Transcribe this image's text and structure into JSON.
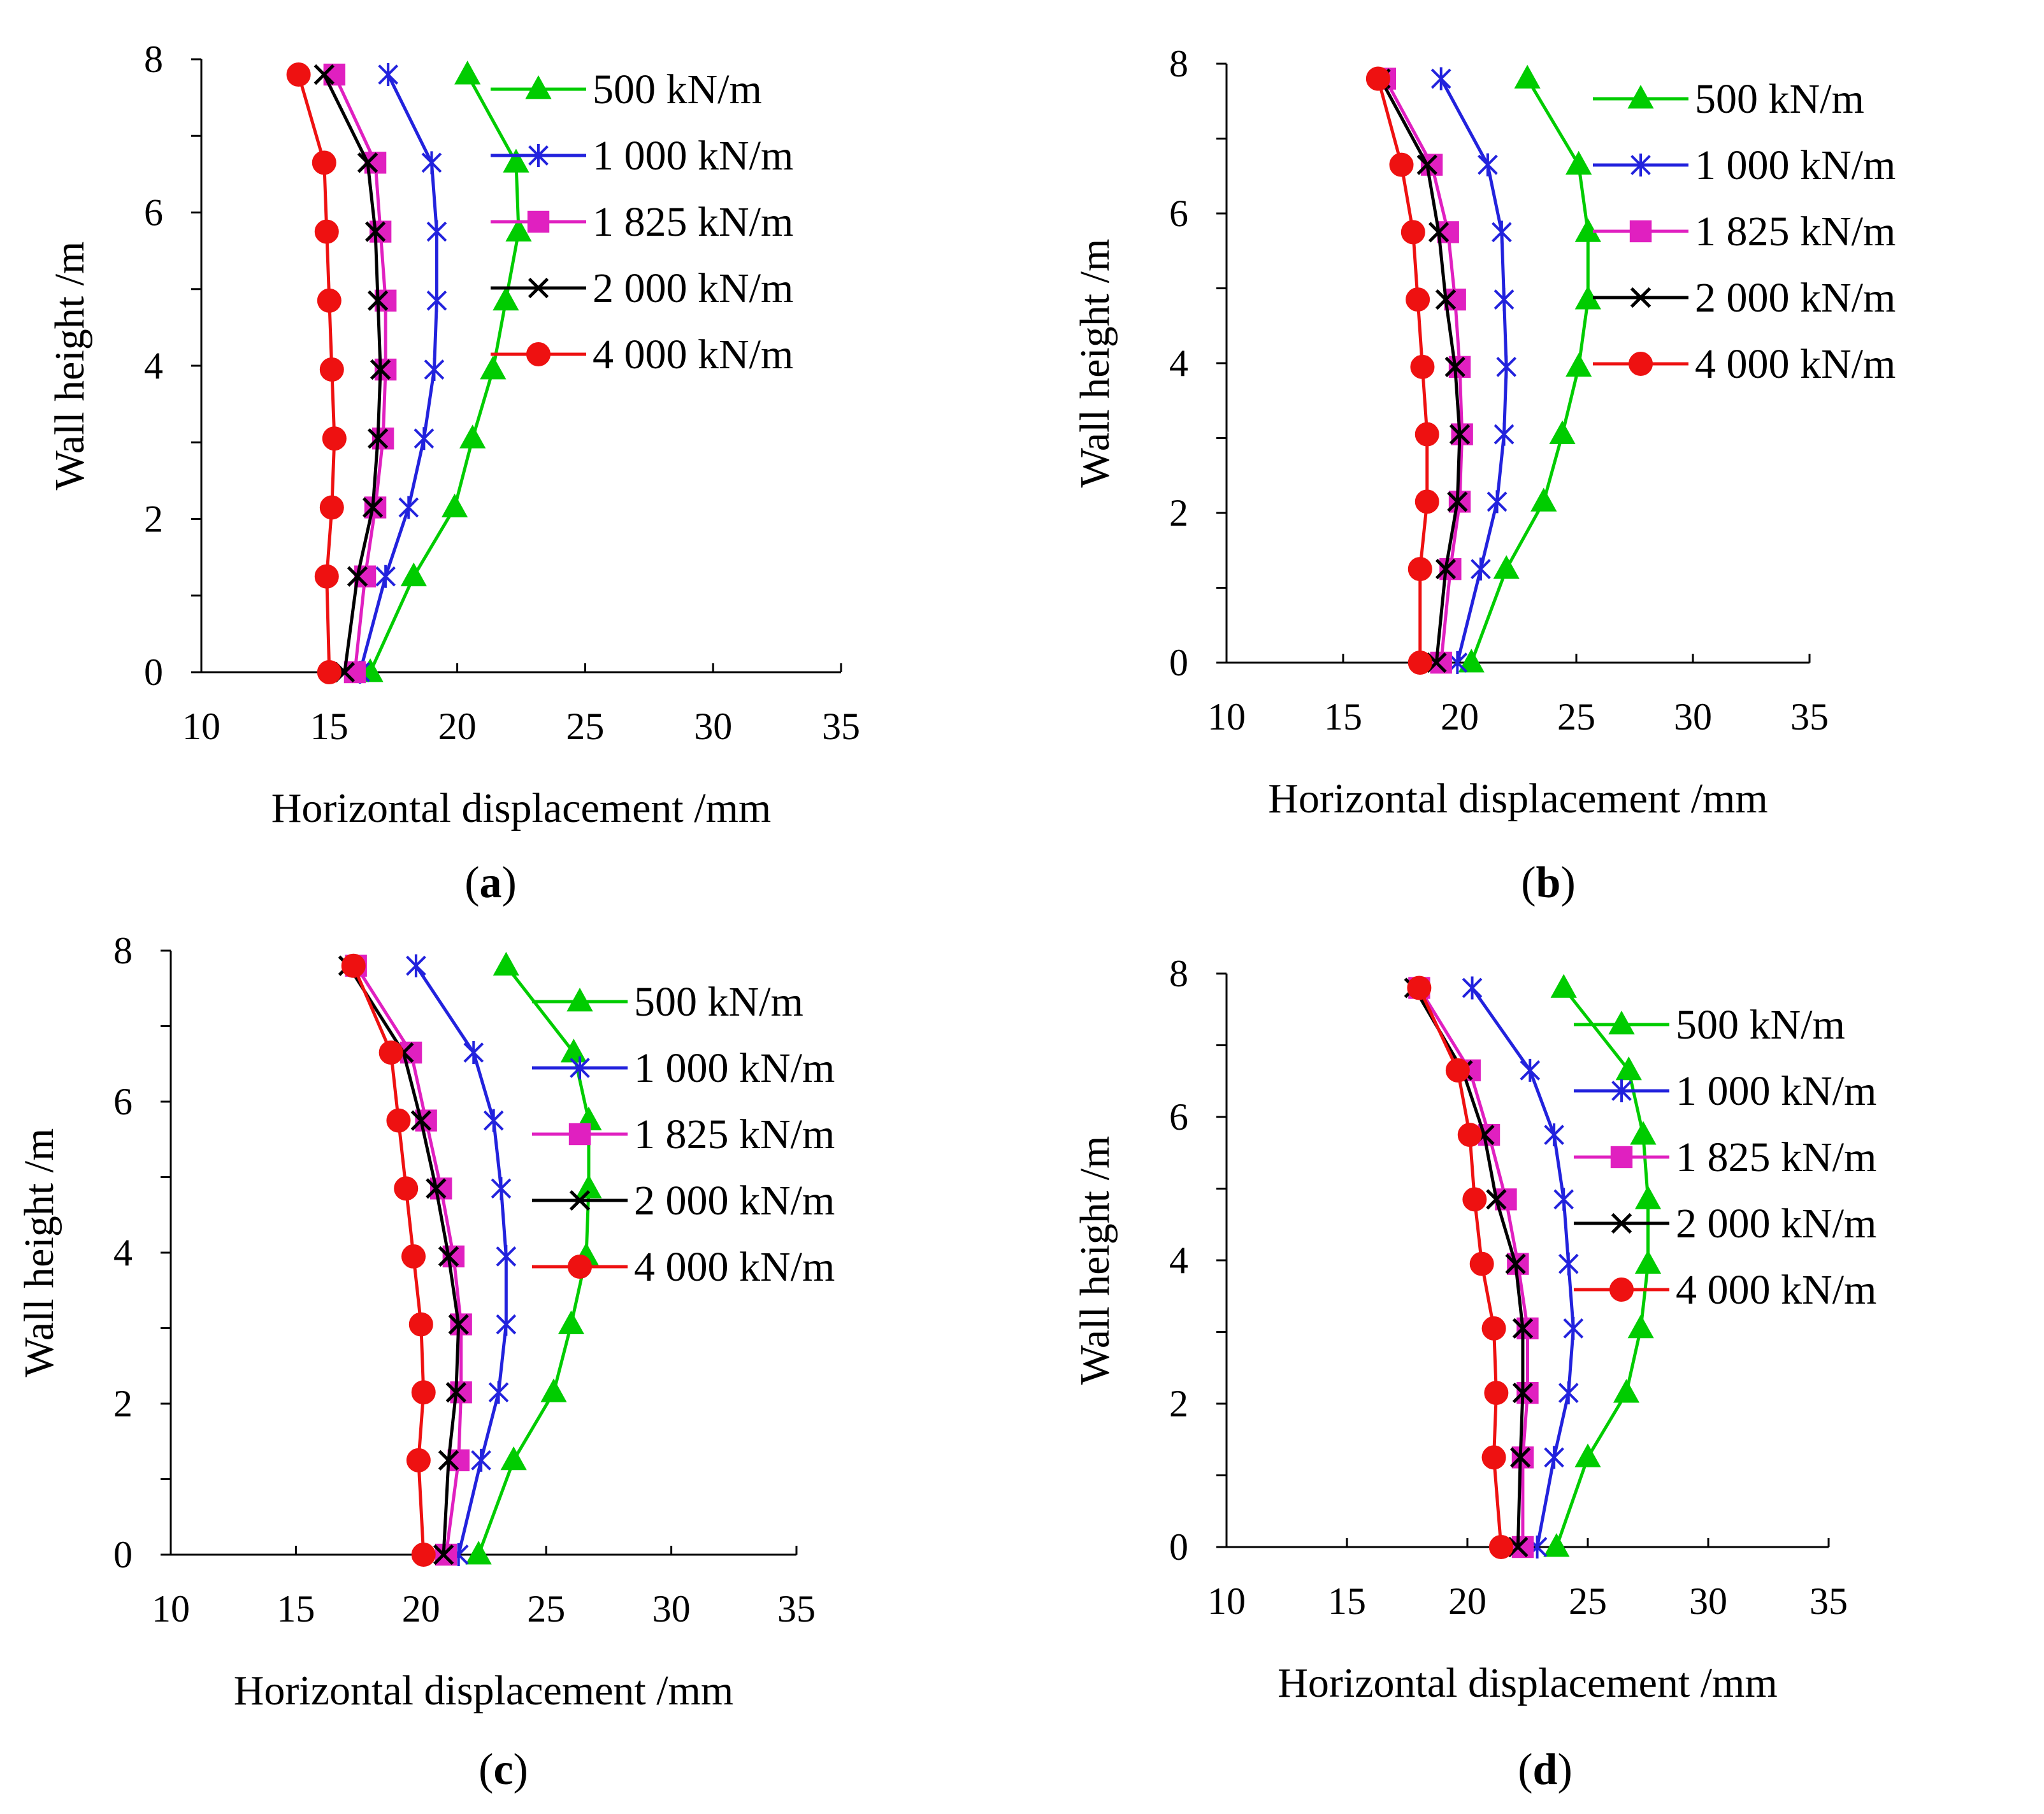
{
  "figure": {
    "type": "multi-panel line charts"
  },
  "chart_data": [
    {
      "panel": "a",
      "caption": {
        "open": "(",
        "letter": "a",
        "close": ")"
      },
      "type": "line",
      "xlabel": "Horizontal displacement /mm",
      "ylabel": "Wall height /m",
      "xlim": [
        10,
        35
      ],
      "ylim": [
        0,
        8
      ],
      "xticks": [
        10,
        15,
        20,
        25,
        30,
        35
      ],
      "yticks": [
        0,
        2,
        4,
        6,
        8
      ],
      "legend_position": "top-right",
      "y": [
        0,
        1.25,
        2.15,
        3.05,
        3.95,
        4.85,
        5.75,
        6.65,
        7.8
      ],
      "series": [
        {
          "name": "500 kN/m",
          "color": "#00cc00",
          "marker": "triangle",
          "values": [
            16.6,
            18.3,
            19.9,
            20.6,
            21.4,
            21.9,
            22.4,
            22.3,
            20.4
          ]
        },
        {
          "name": "1 000 kN/m",
          "color": "#2222dd",
          "marker": "asterisk",
          "values": [
            16.2,
            17.2,
            18.1,
            18.7,
            19.1,
            19.2,
            19.2,
            19.0,
            17.3
          ]
        },
        {
          "name": "1 825 kN/m",
          "color": "#e020c0",
          "marker": "square",
          "values": [
            16.0,
            16.4,
            16.8,
            17.1,
            17.2,
            17.2,
            17.0,
            16.8,
            15.2
          ]
        },
        {
          "name": "2 000 kN/m",
          "color": "#000000",
          "marker": "x",
          "values": [
            15.6,
            16.1,
            16.7,
            16.9,
            17.0,
            16.9,
            16.8,
            16.5,
            14.8
          ]
        },
        {
          "name": "4 000 kN/m",
          "color": "#ee1111",
          "marker": "circle",
          "values": [
            15.0,
            14.9,
            15.1,
            15.2,
            15.1,
            15.0,
            14.9,
            14.8,
            13.8
          ]
        }
      ]
    },
    {
      "panel": "b",
      "caption": {
        "open": "(",
        "letter": "b",
        "close": ")"
      },
      "type": "line",
      "xlabel": "Horizontal displacement /mm",
      "ylabel": "Wall height /m",
      "xlim": [
        10,
        35
      ],
      "ylim": [
        0,
        8
      ],
      "xticks": [
        10,
        15,
        20,
        25,
        30,
        35
      ],
      "yticks": [
        0,
        2,
        4,
        6,
        8
      ],
      "legend_position": "top-right",
      "y": [
        0,
        1.25,
        2.15,
        3.05,
        3.95,
        4.85,
        5.75,
        6.65,
        7.8
      ],
      "series": [
        {
          "name": "500 kN/m",
          "color": "#00cc00",
          "marker": "triangle",
          "values": [
            20.5,
            22.0,
            23.6,
            24.4,
            25.1,
            25.5,
            25.5,
            25.1,
            22.9
          ]
        },
        {
          "name": "1 000 kN/m",
          "color": "#2222dd",
          "marker": "asterisk",
          "values": [
            19.9,
            20.9,
            21.6,
            21.9,
            22.0,
            21.9,
            21.8,
            21.2,
            19.2
          ]
        },
        {
          "name": "1 825 kN/m",
          "color": "#e020c0",
          "marker": "square",
          "values": [
            19.2,
            19.6,
            20.0,
            20.1,
            20.0,
            19.8,
            19.5,
            18.8,
            16.8
          ]
        },
        {
          "name": "2 000 kN/m",
          "color": "#000000",
          "marker": "x",
          "values": [
            19.0,
            19.4,
            19.9,
            20.0,
            19.8,
            19.4,
            19.1,
            18.6,
            16.6
          ]
        },
        {
          "name": "4 000 kN/m",
          "color": "#ee1111",
          "marker": "circle",
          "values": [
            18.3,
            18.3,
            18.6,
            18.6,
            18.4,
            18.2,
            18.0,
            17.5,
            16.5
          ]
        }
      ]
    },
    {
      "panel": "c",
      "caption": {
        "open": "(",
        "letter": "c",
        "close": ")"
      },
      "type": "line",
      "xlabel": "Horizontal displacement /mm",
      "ylabel": "Wall height /m",
      "xlim": [
        10,
        35
      ],
      "ylim": [
        0,
        8
      ],
      "xticks": [
        10,
        15,
        20,
        25,
        30,
        35
      ],
      "yticks": [
        0,
        2,
        4,
        6,
        8
      ],
      "legend_position": "top-right",
      "y": [
        0,
        1.25,
        2.15,
        3.05,
        3.95,
        4.85,
        5.75,
        6.65,
        7.8
      ],
      "series": [
        {
          "name": "500 kN/m",
          "color": "#00cc00",
          "marker": "triangle",
          "values": [
            22.3,
            23.7,
            25.3,
            26.0,
            26.6,
            26.7,
            26.7,
            26.1,
            23.4
          ]
        },
        {
          "name": "1 000 kN/m",
          "color": "#2222dd",
          "marker": "asterisk",
          "values": [
            21.5,
            22.4,
            23.1,
            23.4,
            23.4,
            23.2,
            22.9,
            22.1,
            19.8
          ]
        },
        {
          "name": "1 825 kN/m",
          "color": "#e020c0",
          "marker": "square",
          "values": [
            21.0,
            21.5,
            21.6,
            21.6,
            21.3,
            20.8,
            20.2,
            19.6,
            17.4
          ]
        },
        {
          "name": "2 000 kN/m",
          "color": "#000000",
          "marker": "x",
          "values": [
            20.9,
            21.1,
            21.4,
            21.5,
            21.1,
            20.6,
            20.0,
            19.3,
            17.1
          ]
        },
        {
          "name": "4 000 kN/m",
          "color": "#ee1111",
          "marker": "circle",
          "values": [
            20.1,
            19.9,
            20.1,
            20.0,
            19.7,
            19.4,
            19.1,
            18.8,
            17.3
          ]
        }
      ]
    },
    {
      "panel": "d",
      "caption": {
        "open": "(",
        "letter": "d",
        "close": ")"
      },
      "type": "line",
      "xlabel": "Horizontal displacement /mm",
      "ylabel": "Wall height /m",
      "xlim": [
        10,
        35
      ],
      "ylim": [
        0,
        8
      ],
      "xticks": [
        10,
        15,
        20,
        25,
        30,
        35
      ],
      "yticks": [
        0,
        2,
        4,
        6,
        8
      ],
      "legend_position": "top-right",
      "y": [
        0,
        1.25,
        2.15,
        3.05,
        3.95,
        4.85,
        5.75,
        6.65,
        7.8
      ],
      "series": [
        {
          "name": "500 kN/m",
          "color": "#00cc00",
          "marker": "triangle",
          "values": [
            23.7,
            25.0,
            26.6,
            27.2,
            27.5,
            27.5,
            27.3,
            26.7,
            24.0
          ]
        },
        {
          "name": "1 000 kN/m",
          "color": "#2222dd",
          "marker": "asterisk",
          "values": [
            22.9,
            23.6,
            24.2,
            24.4,
            24.2,
            24.0,
            23.6,
            22.6,
            20.2
          ]
        },
        {
          "name": "1 825 kN/m",
          "color": "#e020c0",
          "marker": "square",
          "values": [
            22.3,
            22.3,
            22.5,
            22.5,
            22.1,
            21.6,
            20.9,
            20.1,
            18.0
          ]
        },
        {
          "name": "2 000 kN/m",
          "color": "#000000",
          "marker": "x",
          "values": [
            22.1,
            22.2,
            22.3,
            22.3,
            22.0,
            21.2,
            20.7,
            19.8,
            17.8
          ]
        },
        {
          "name": "4 000 kN/m",
          "color": "#ee1111",
          "marker": "circle",
          "values": [
            21.4,
            21.1,
            21.2,
            21.1,
            20.6,
            20.3,
            20.1,
            19.6,
            18.0
          ]
        }
      ]
    }
  ]
}
